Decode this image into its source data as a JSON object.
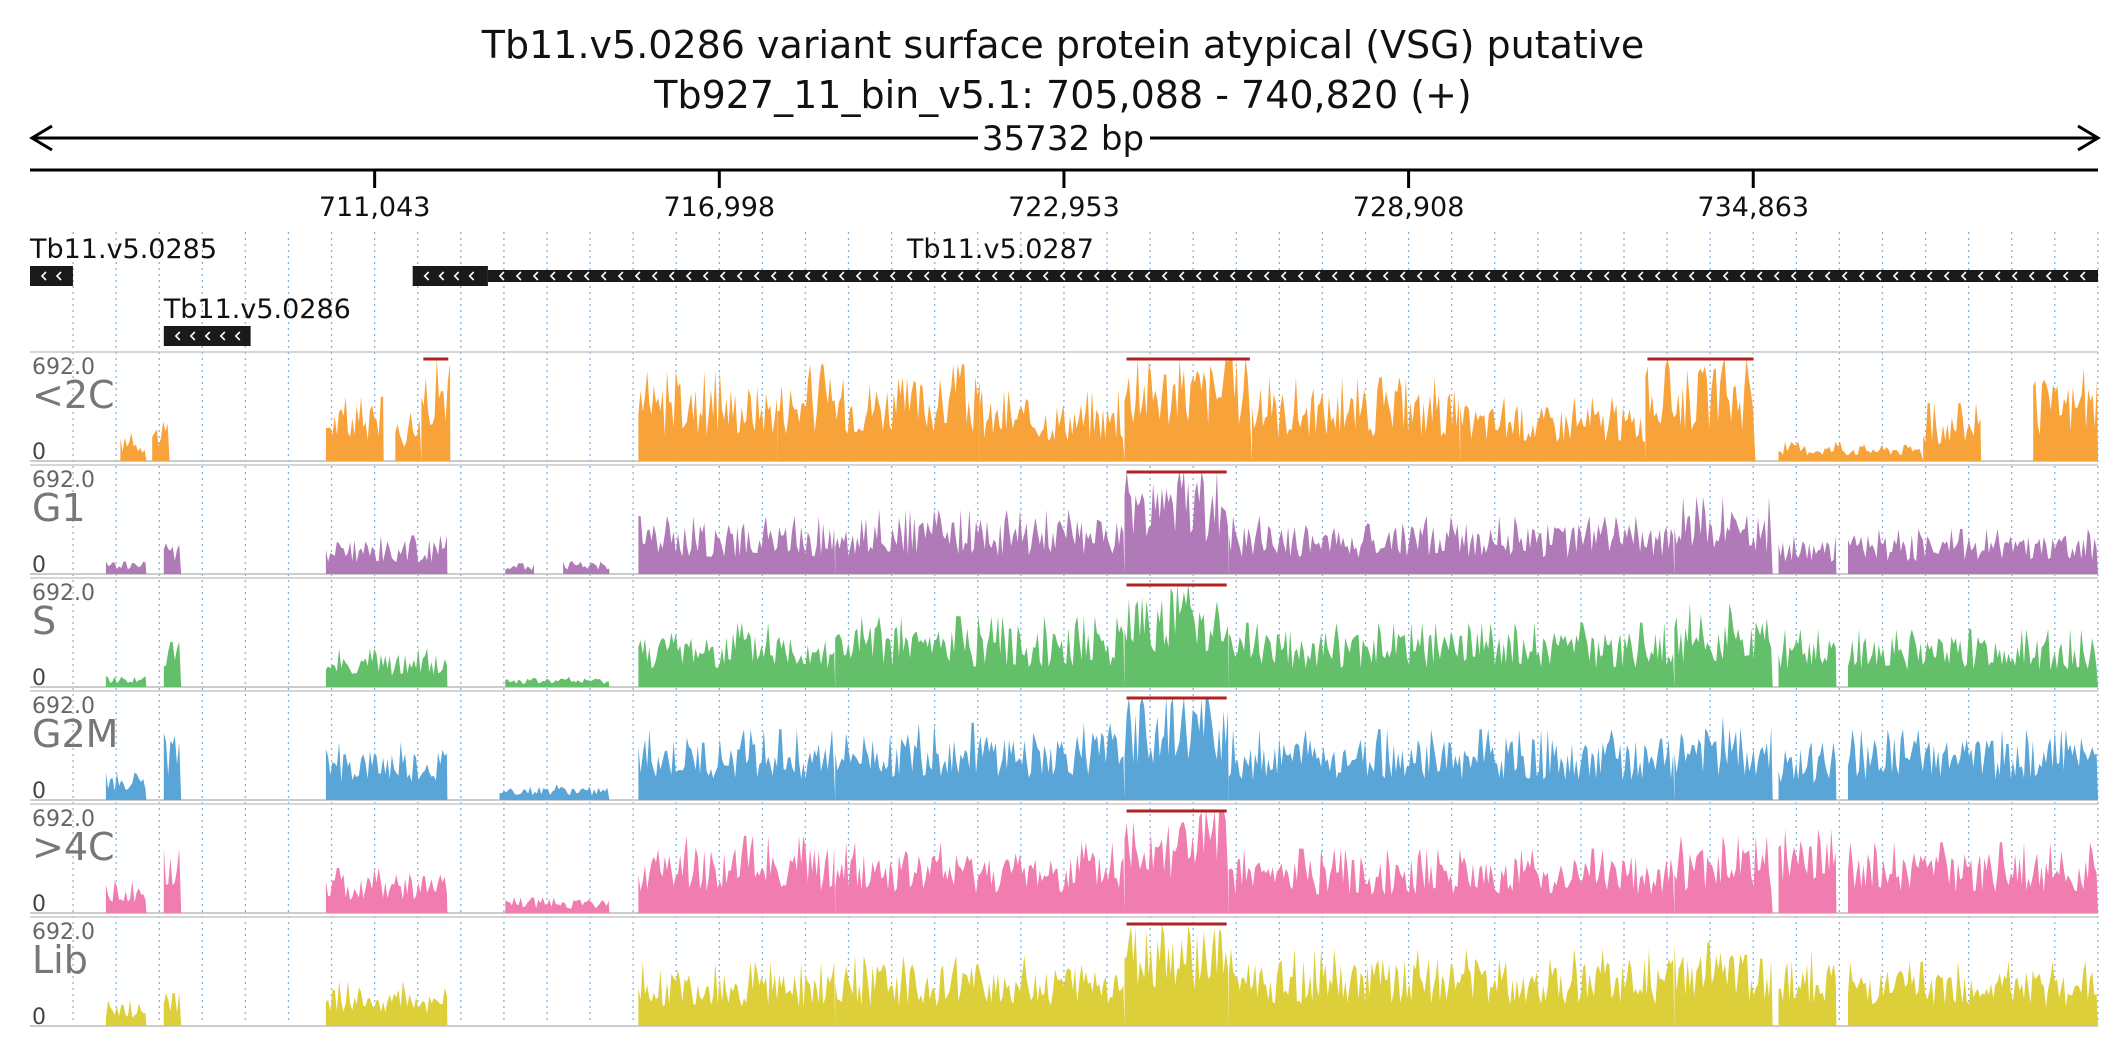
{
  "title": "Tb11.v5.0286  variant surface protein  atypical (VSG)  putative",
  "subtitle": "Tb927_11_bin_v5.1: 705,088 - 740,820 (+)",
  "span_label": "35732 bp",
  "colors": {
    "text": "#111111",
    "axis": "#000000",
    "grid": "#7fb3e0",
    "gene": "#1a1a1a",
    "clip_marker": "#b22222"
  },
  "chart_data": {
    "type": "area",
    "x_range": [
      705088,
      740820
    ],
    "x_ticks": [
      {
        "value": 711043,
        "label": "711,043"
      },
      {
        "value": 716998,
        "label": "716,998"
      },
      {
        "value": 722953,
        "label": "722,953"
      },
      {
        "value": 728908,
        "label": "728,908"
      },
      {
        "value": 734863,
        "label": "734,863"
      }
    ],
    "genes": [
      {
        "name": "Tb11.v5.0285",
        "start": 705088,
        "end": 705830,
        "strand": "-",
        "row": 0,
        "show_label": true
      },
      {
        "name": "Tb11.v5.0286",
        "start": 707400,
        "end": 708900,
        "strand": "-",
        "row": 1,
        "show_label": true
      },
      {
        "name": "Tb11.v5.0287",
        "start": 711700,
        "end": 713000,
        "strand": "-",
        "row": 0,
        "show_label": false,
        "style": "solid"
      },
      {
        "name": "Tb11.v5.0287",
        "start": 713000,
        "end": 740820,
        "strand": "-",
        "row": 0,
        "show_label": true,
        "label_at": 720240,
        "style": "thin"
      }
    ],
    "ylim": [
      0,
      692.0
    ],
    "ymax_label": "692.0",
    "ymin_label": "0",
    "tracks": [
      {
        "name": "<2C",
        "color": "#f8a23a",
        "segments": [
          {
            "start": 706650,
            "end": 707100,
            "level": 0.22
          },
          {
            "start": 707200,
            "end": 707500,
            "level": 0.35
          },
          {
            "start": 710200,
            "end": 711200,
            "level": 0.5
          },
          {
            "start": 711400,
            "end": 711850,
            "level": 0.38
          },
          {
            "start": 711850,
            "end": 712350,
            "level": 0.95
          },
          {
            "start": 715600,
            "end": 718000,
            "level": 0.7
          },
          {
            "start": 718000,
            "end": 721500,
            "level": 0.75
          },
          {
            "start": 721500,
            "end": 724000,
            "level": 0.55
          },
          {
            "start": 724000,
            "end": 726200,
            "level": 0.92
          },
          {
            "start": 726200,
            "end": 729800,
            "level": 0.65
          },
          {
            "start": 729800,
            "end": 733000,
            "level": 0.5
          },
          {
            "start": 733000,
            "end": 734900,
            "level": 0.85
          },
          {
            "start": 735300,
            "end": 737800,
            "level": 0.15
          },
          {
            "start": 737800,
            "end": 738800,
            "level": 0.45
          },
          {
            "start": 739700,
            "end": 740820,
            "level": 0.72
          }
        ]
      },
      {
        "name": "G1",
        "color": "#b07ab8",
        "segments": [
          {
            "start": 706400,
            "end": 707100,
            "level": 0.12
          },
          {
            "start": 707400,
            "end": 707700,
            "level": 0.3
          },
          {
            "start": 710200,
            "end": 712300,
            "level": 0.3
          },
          {
            "start": 713300,
            "end": 713800,
            "level": 0.1
          },
          {
            "start": 714300,
            "end": 715100,
            "level": 0.12
          },
          {
            "start": 715600,
            "end": 719000,
            "level": 0.45
          },
          {
            "start": 719000,
            "end": 724000,
            "level": 0.5
          },
          {
            "start": 724000,
            "end": 725800,
            "level": 0.85
          },
          {
            "start": 725800,
            "end": 733500,
            "level": 0.45
          },
          {
            "start": 733500,
            "end": 735200,
            "level": 0.6
          },
          {
            "start": 735300,
            "end": 736300,
            "level": 0.3
          },
          {
            "start": 736500,
            "end": 740820,
            "level": 0.35
          }
        ]
      },
      {
        "name": "S",
        "color": "#63bf6a",
        "segments": [
          {
            "start": 706400,
            "end": 707100,
            "level": 0.1
          },
          {
            "start": 707400,
            "end": 707700,
            "level": 0.35
          },
          {
            "start": 710200,
            "end": 712300,
            "level": 0.3
          },
          {
            "start": 713300,
            "end": 715100,
            "level": 0.08
          },
          {
            "start": 715600,
            "end": 719000,
            "level": 0.5
          },
          {
            "start": 719000,
            "end": 724000,
            "level": 0.55
          },
          {
            "start": 724000,
            "end": 725800,
            "level": 0.9
          },
          {
            "start": 725800,
            "end": 733500,
            "level": 0.5
          },
          {
            "start": 733500,
            "end": 735200,
            "level": 0.65
          },
          {
            "start": 735300,
            "end": 736300,
            "level": 0.45
          },
          {
            "start": 736500,
            "end": 740820,
            "level": 0.45
          }
        ]
      },
      {
        "name": "G2M",
        "color": "#5aa5d8",
        "segments": [
          {
            "start": 706400,
            "end": 707100,
            "level": 0.25
          },
          {
            "start": 707400,
            "end": 707700,
            "level": 0.6
          },
          {
            "start": 710200,
            "end": 712300,
            "level": 0.45
          },
          {
            "start": 713200,
            "end": 715100,
            "level": 0.12
          },
          {
            "start": 715600,
            "end": 719000,
            "level": 0.55
          },
          {
            "start": 719000,
            "end": 724000,
            "level": 0.6
          },
          {
            "start": 724000,
            "end": 725800,
            "level": 0.95
          },
          {
            "start": 725800,
            "end": 733500,
            "level": 0.55
          },
          {
            "start": 733500,
            "end": 735200,
            "level": 0.65
          },
          {
            "start": 735300,
            "end": 736300,
            "level": 0.45
          },
          {
            "start": 736500,
            "end": 740820,
            "level": 0.55
          }
        ]
      },
      {
        "name": ">4C",
        "color": "#f07cb0",
        "segments": [
          {
            "start": 706400,
            "end": 707100,
            "level": 0.25
          },
          {
            "start": 707400,
            "end": 707700,
            "level": 0.5
          },
          {
            "start": 710200,
            "end": 712300,
            "level": 0.35
          },
          {
            "start": 713300,
            "end": 715100,
            "level": 0.12
          },
          {
            "start": 715600,
            "end": 719000,
            "level": 0.6
          },
          {
            "start": 719000,
            "end": 724000,
            "level": 0.55
          },
          {
            "start": 724000,
            "end": 725800,
            "level": 0.95
          },
          {
            "start": 725800,
            "end": 733500,
            "level": 0.5
          },
          {
            "start": 733500,
            "end": 735200,
            "level": 0.6
          },
          {
            "start": 735300,
            "end": 736300,
            "level": 0.65
          },
          {
            "start": 736500,
            "end": 740820,
            "level": 0.55
          }
        ]
      },
      {
        "name": "Lib",
        "color": "#dccf3a",
        "segments": [
          {
            "start": 706400,
            "end": 707100,
            "level": 0.2
          },
          {
            "start": 707400,
            "end": 707700,
            "level": 0.35
          },
          {
            "start": 710200,
            "end": 712300,
            "level": 0.35
          },
          {
            "start": 715600,
            "end": 719000,
            "level": 0.5
          },
          {
            "start": 719000,
            "end": 724000,
            "level": 0.55
          },
          {
            "start": 724000,
            "end": 725800,
            "level": 0.9
          },
          {
            "start": 725800,
            "end": 733500,
            "level": 0.6
          },
          {
            "start": 733500,
            "end": 735200,
            "level": 0.65
          },
          {
            "start": 735300,
            "end": 736300,
            "level": 0.6
          },
          {
            "start": 736500,
            "end": 740820,
            "level": 0.5
          }
        ]
      }
    ]
  }
}
